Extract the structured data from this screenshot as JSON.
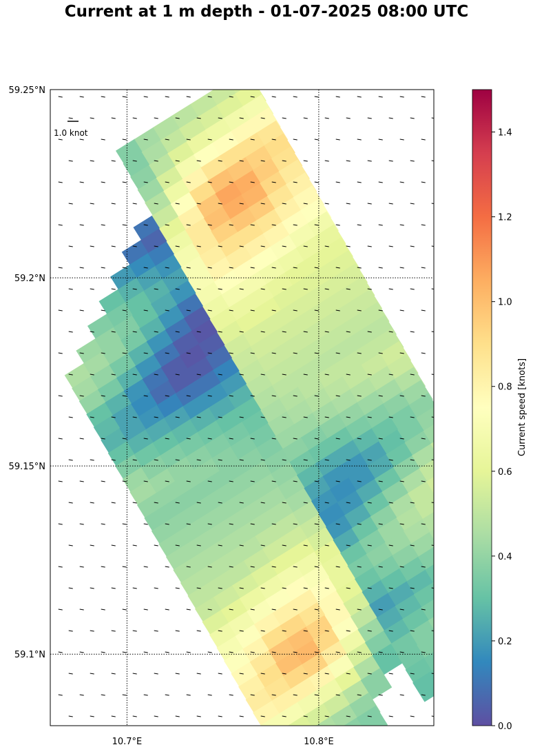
{
  "title": "Current at 1 m depth - 01-07-2025 08:00 UTC",
  "map": {
    "lon_range": [
      10.66,
      10.86
    ],
    "lat_range": [
      59.081,
      59.25
    ],
    "lat_ticks": [
      {
        "value": 59.25,
        "label": "59.25°N"
      },
      {
        "value": 59.2,
        "label": "59.2°N"
      },
      {
        "value": 59.15,
        "label": "59.15°N"
      },
      {
        "value": 59.1,
        "label": "59.1°N"
      }
    ],
    "lon_ticks": [
      {
        "value": 10.7,
        "label": "10.7°E"
      },
      {
        "value": 10.8,
        "label": "10.8°E"
      }
    ],
    "gridlines": "dotted",
    "field_orientation_deg": -32,
    "field_cells": [
      [
        0.32,
        0.38,
        0.42,
        0.4,
        0.36,
        0.34,
        0.3,
        0.36,
        0.38,
        0.4,
        0.44,
        0.46,
        0.44,
        0.4,
        0.3,
        0.28,
        0.26,
        0.3,
        0.36,
        0.42,
        0.44,
        0.4,
        0.38,
        0.4,
        0.42,
        0.44,
        0.46,
        0.48,
        0.5,
        0.52,
        0.58,
        0.66,
        0.7,
        0.74,
        0.78,
        0.82,
        0.84,
        0.8,
        0.7,
        0.6,
        0.5,
        0.44
      ],
      [
        0.28,
        0.34,
        0.4,
        0.38,
        0.34,
        0.3,
        0.26,
        0.32,
        0.36,
        0.38,
        0.42,
        0.44,
        0.4,
        0.34,
        0.26,
        0.22,
        0.22,
        0.26,
        0.32,
        0.38,
        0.42,
        0.4,
        0.38,
        0.4,
        0.42,
        0.44,
        0.46,
        0.48,
        0.5,
        0.54,
        0.6,
        0.68,
        0.74,
        0.8,
        0.86,
        0.9,
        0.88,
        0.82,
        0.7,
        0.58,
        0.48,
        0.42
      ],
      [
        0.24,
        0.3,
        0.36,
        0.36,
        0.3,
        0.26,
        0.22,
        0.28,
        0.34,
        0.36,
        0.4,
        0.4,
        0.34,
        0.26,
        0.18,
        0.16,
        0.18,
        0.24,
        0.3,
        0.36,
        0.4,
        0.4,
        0.38,
        0.4,
        0.42,
        0.44,
        0.46,
        0.48,
        0.5,
        0.56,
        0.64,
        0.72,
        0.8,
        0.9,
        0.98,
        1.0,
        0.92,
        0.82,
        0.68,
        0.56,
        0.46,
        0.4
      ],
      [
        0.22,
        0.26,
        0.32,
        0.32,
        0.26,
        0.22,
        0.18,
        0.24,
        0.3,
        0.34,
        0.36,
        0.34,
        0.26,
        0.18,
        0.1,
        0.08,
        0.14,
        0.22,
        0.28,
        0.34,
        0.38,
        0.4,
        0.38,
        0.4,
        0.42,
        0.44,
        0.46,
        0.48,
        0.52,
        0.58,
        0.66,
        0.74,
        0.82,
        0.92,
        1.0,
        1.02,
        0.94,
        0.8,
        0.66,
        0.54,
        0.44,
        0.38
      ],
      [
        0.2,
        0.22,
        0.28,
        0.28,
        0.22,
        0.18,
        0.14,
        0.2,
        0.26,
        0.3,
        0.3,
        0.26,
        0.18,
        0.1,
        0.04,
        0.04,
        0.1,
        0.18,
        0.26,
        0.32,
        0.36,
        0.38,
        0.38,
        0.4,
        0.42,
        0.44,
        0.46,
        0.5,
        0.54,
        0.6,
        0.68,
        0.76,
        0.82,
        0.88,
        0.94,
        0.92,
        0.84,
        0.72,
        0.6,
        0.48,
        0.4,
        0.36
      ],
      [
        0.18,
        0.2,
        0.24,
        0.24,
        0.18,
        0.14,
        0.1,
        0.16,
        0.22,
        0.26,
        0.24,
        0.18,
        0.1,
        0.04,
        0.02,
        0.04,
        0.1,
        0.18,
        0.24,
        0.3,
        0.34,
        0.36,
        0.38,
        0.4,
        0.42,
        0.44,
        0.46,
        0.5,
        0.54,
        0.6,
        0.66,
        0.72,
        0.76,
        0.78,
        0.78,
        0.74,
        0.66,
        0.56,
        0.46,
        0.38,
        0.34,
        0.32
      ],
      [
        0.16,
        0.18,
        0.2,
        0.2,
        0.14,
        0.1,
        0.06,
        0.12,
        0.18,
        0.22,
        0.18,
        0.1,
        0.04,
        0.02,
        0.04,
        0.08,
        0.14,
        0.2,
        0.26,
        0.3,
        0.32,
        0.34,
        0.36,
        0.38,
        0.4,
        0.42,
        0.44,
        0.48,
        0.52,
        0.56,
        0.6,
        0.62,
        0.62,
        0.6,
        0.56,
        0.5,
        0.42,
        0.36,
        0.3,
        0.26,
        0.24,
        0.24
      ]
    ],
    "masked_cells": [
      [
        0,
        0
      ],
      [
        0,
        1
      ],
      [
        0,
        2
      ],
      [
        0,
        3
      ],
      [
        0,
        4
      ],
      [
        0,
        5
      ],
      [
        0,
        6
      ],
      [
        0,
        7
      ],
      [
        0,
        8
      ],
      [
        0,
        9
      ],
      [
        0,
        10
      ],
      [
        1,
        0
      ],
      [
        1,
        1
      ],
      [
        1,
        2
      ],
      [
        1,
        3
      ],
      [
        1,
        4
      ],
      [
        1,
        5
      ],
      [
        1,
        6
      ],
      [
        1,
        7
      ],
      [
        1,
        8
      ],
      [
        1,
        9
      ],
      [
        2,
        0
      ],
      [
        2,
        1
      ],
      [
        2,
        2
      ],
      [
        2,
        3
      ],
      [
        2,
        4
      ],
      [
        2,
        5
      ],
      [
        2,
        6
      ],
      [
        2,
        7
      ],
      [
        2,
        8
      ],
      [
        3,
        0
      ],
      [
        3,
        1
      ],
      [
        3,
        2
      ],
      [
        3,
        3
      ],
      [
        3,
        4
      ],
      [
        3,
        5
      ],
      [
        3,
        6
      ],
      [
        3,
        7
      ],
      [
        4,
        0
      ],
      [
        4,
        1
      ],
      [
        4,
        2
      ],
      [
        4,
        3
      ],
      [
        4,
        4
      ],
      [
        4,
        5
      ],
      [
        4,
        6
      ],
      [
        5,
        0
      ],
      [
        5,
        1
      ],
      [
        5,
        2
      ],
      [
        5,
        3
      ],
      [
        5,
        4
      ],
      [
        5,
        5
      ],
      [
        6,
        0
      ],
      [
        6,
        1
      ],
      [
        6,
        2
      ],
      [
        6,
        3
      ],
      [
        6,
        4
      ],
      [
        6,
        39
      ],
      [
        6,
        40
      ],
      [
        6,
        41
      ],
      [
        5,
        40
      ],
      [
        5,
        41
      ]
    ],
    "quiver_key": {
      "label": "1.0 knot",
      "value": 1.0
    }
  },
  "colorbar": {
    "label": "Current speed [knots]",
    "range": [
      0.0,
      1.5
    ],
    "ticks": [
      "0.0",
      "0.2",
      "0.4",
      "0.6",
      "0.8",
      "1.0",
      "1.2",
      "1.4"
    ],
    "colormap": "Spectral_r",
    "colormap_stops": [
      "#5e4fa2",
      "#3288bd",
      "#66c2a5",
      "#abdda4",
      "#e6f598",
      "#ffffbf",
      "#fee08b",
      "#fdae61",
      "#f46d43",
      "#d53e4f",
      "#9e0142"
    ]
  }
}
